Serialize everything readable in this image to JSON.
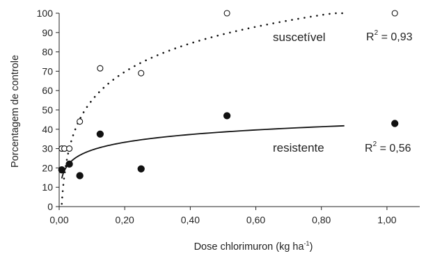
{
  "chart_data": {
    "type": "scatter",
    "xlabel": "Dose chlorimuron (kg ha",
    "xlabel_sup": "-1",
    "xlabel_close": ")",
    "ylabel": "Porcentagem de controle",
    "xlim": [
      0,
      1.1
    ],
    "ylim": [
      0,
      100
    ],
    "xticks": [
      {
        "v": 0.0,
        "label": "0,00"
      },
      {
        "v": 0.2,
        "label": "0,20"
      },
      {
        "v": 0.4,
        "label": "0,40"
      },
      {
        "v": 0.6,
        "label": "0,60"
      },
      {
        "v": 0.8,
        "label": "0,80"
      },
      {
        "v": 1.0,
        "label": "1,00"
      }
    ],
    "yticks": [
      {
        "v": 0,
        "label": "0"
      },
      {
        "v": 10,
        "label": "10"
      },
      {
        "v": 20,
        "label": "20"
      },
      {
        "v": 30,
        "label": "30"
      },
      {
        "v": 40,
        "label": "40"
      },
      {
        "v": 50,
        "label": "50"
      },
      {
        "v": 60,
        "label": "60"
      },
      {
        "v": 70,
        "label": "70"
      },
      {
        "v": 80,
        "label": "80"
      },
      {
        "v": 90,
        "label": "90"
      },
      {
        "v": 100,
        "label": "100"
      }
    ],
    "grid": false,
    "series": [
      {
        "name": "suscetível",
        "marker": "open-circle",
        "points": [
          {
            "x": 0.008,
            "y": 30
          },
          {
            "x": 0.016,
            "y": 30
          },
          {
            "x": 0.031,
            "y": 30
          },
          {
            "x": 0.063,
            "y": 44
          },
          {
            "x": 0.125,
            "y": 71.5
          },
          {
            "x": 0.25,
            "y": 69
          },
          {
            "x": 0.512,
            "y": 100
          },
          {
            "x": 1.024,
            "y": 100
          }
        ],
        "fit": {
          "style": "dotted",
          "model": "log",
          "a": 103.8,
          "b": 21.2,
          "x_range": [
            0.008,
            0.87
          ]
        },
        "r2_label": "R",
        "r2_sup": "2",
        "r2_value": " = 0,93"
      },
      {
        "name": "resistente",
        "marker": "filled-circle",
        "points": [
          {
            "x": 0.008,
            "y": 19
          },
          {
            "x": 0.031,
            "y": 22
          },
          {
            "x": 0.063,
            "y": 16
          },
          {
            "x": 0.125,
            "y": 37.5
          },
          {
            "x": 0.25,
            "y": 19.5
          },
          {
            "x": 0.512,
            "y": 47
          },
          {
            "x": 1.024,
            "y": 43
          }
        ],
        "fit": {
          "style": "solid",
          "model": "log",
          "a": 42.6,
          "b": 5.8,
          "x_range": [
            0.008,
            0.87
          ]
        },
        "r2_label": "R",
        "r2_sup": "2",
        "r2_value": " = 0,56"
      }
    ]
  }
}
